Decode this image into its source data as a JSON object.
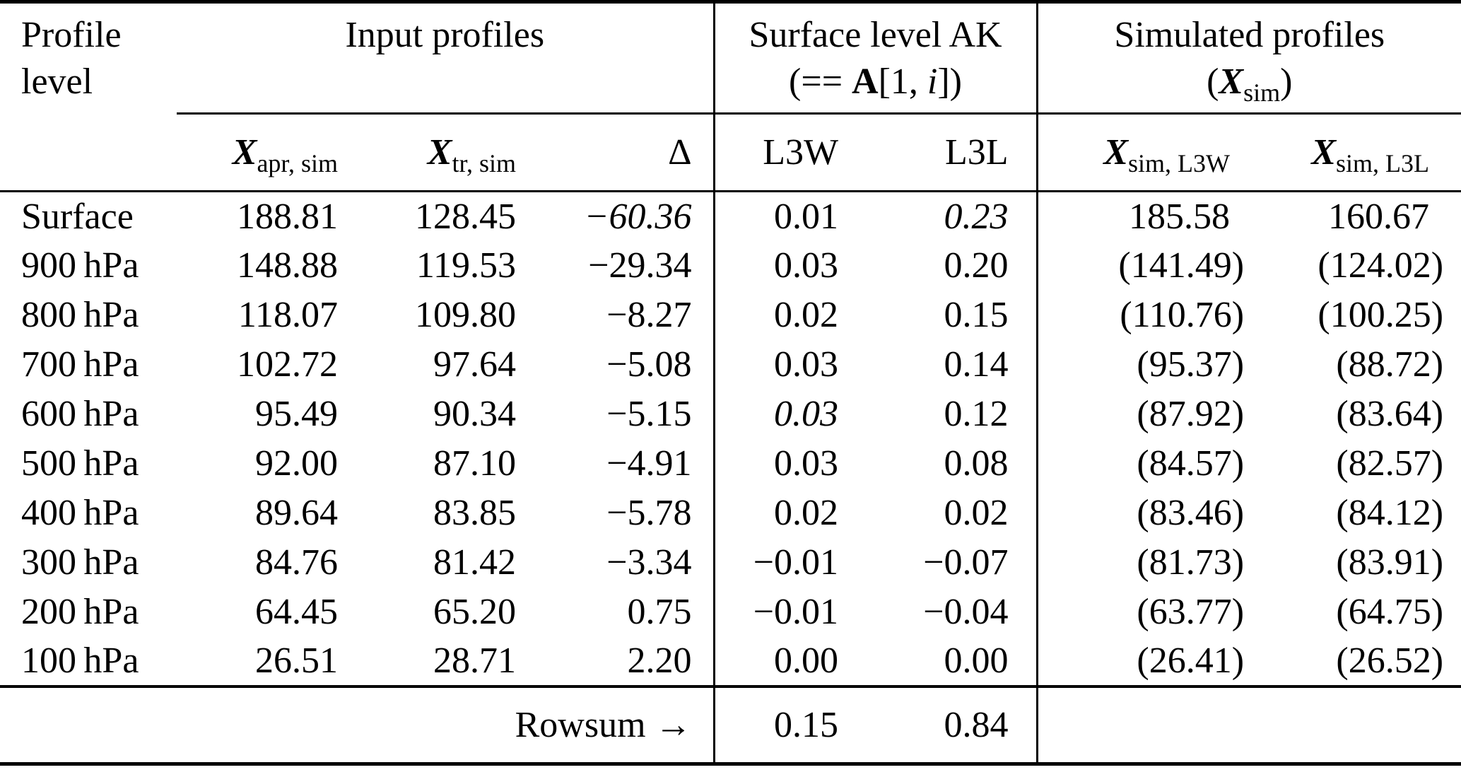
{
  "header": {
    "profile_line1": "Profile",
    "profile_line2": "level",
    "input_profiles": "Input profiles",
    "surface_ak_line1": "Surface level AK",
    "surface_ak_open": "(== ",
    "surface_ak_A": "A",
    "surface_ak_mid": "[1, ",
    "surface_ak_i": "i",
    "surface_ak_close": "])",
    "simulated_line1": "Simulated profiles",
    "sim_open": "(",
    "sim_X": "X",
    "sim_sub": "sim",
    "sim_close": ")"
  },
  "columns": {
    "x_apr": {
      "main": "X",
      "sub": "apr, sim"
    },
    "x_tr": {
      "main": "X",
      "sub": "tr, sim"
    },
    "delta": "Δ",
    "l3w": "L3W",
    "l3l": "L3L",
    "x_sim_l3w": {
      "main": "X",
      "sub": "sim, L3W"
    },
    "x_sim_l3l": {
      "main": "X",
      "sub": "sim, L3L"
    }
  },
  "rows": [
    {
      "level": "Surface",
      "x_apr": "188.81",
      "x_tr": "128.45",
      "delta": "−60.36",
      "l3w": "0.01",
      "l3l": "0.23",
      "sim_l3w": "185.58",
      "sim_l3l": "160.67",
      "italic": [
        "delta",
        "l3l"
      ]
    },
    {
      "level": "900 hPa",
      "x_apr": "148.88",
      "x_tr": "119.53",
      "delta": "−29.34",
      "l3w": "0.03",
      "l3l": "0.20",
      "sim_l3w": "(141.49)",
      "sim_l3l": "(124.02)",
      "italic": []
    },
    {
      "level": "800 hPa",
      "x_apr": "118.07",
      "x_tr": "109.80",
      "delta": "−8.27",
      "l3w": "0.02",
      "l3l": "0.15",
      "sim_l3w": "(110.76)",
      "sim_l3l": "(100.25)",
      "italic": []
    },
    {
      "level": "700 hPa",
      "x_apr": "102.72",
      "x_tr": "97.64",
      "delta": "−5.08",
      "l3w": "0.03",
      "l3l": "0.14",
      "sim_l3w": "(95.37)",
      "sim_l3l": "(88.72)",
      "italic": []
    },
    {
      "level": "600 hPa",
      "x_apr": "95.49",
      "x_tr": "90.34",
      "delta": "−5.15",
      "l3w": "0.03",
      "l3l": "0.12",
      "sim_l3w": "(87.92)",
      "sim_l3l": "(83.64)",
      "italic": [
        "l3w"
      ]
    },
    {
      "level": "500 hPa",
      "x_apr": "92.00",
      "x_tr": "87.10",
      "delta": "−4.91",
      "l3w": "0.03",
      "l3l": "0.08",
      "sim_l3w": "(84.57)",
      "sim_l3l": "(82.57)",
      "italic": []
    },
    {
      "level": "400 hPa",
      "x_apr": "89.64",
      "x_tr": "83.85",
      "delta": "−5.78",
      "l3w": "0.02",
      "l3l": "0.02",
      "sim_l3w": "(83.46)",
      "sim_l3l": "(84.12)",
      "italic": []
    },
    {
      "level": "300 hPa",
      "x_apr": "84.76",
      "x_tr": "81.42",
      "delta": "−3.34",
      "l3w": "−0.01",
      "l3l": "−0.07",
      "sim_l3w": "(81.73)",
      "sim_l3l": "(83.91)",
      "italic": []
    },
    {
      "level": "200 hPa",
      "x_apr": "64.45",
      "x_tr": "65.20",
      "delta": "0.75",
      "l3w": "−0.01",
      "l3l": "−0.04",
      "sim_l3w": "(63.77)",
      "sim_l3l": "(64.75)",
      "italic": []
    },
    {
      "level": "100 hPa",
      "x_apr": "26.51",
      "x_tr": "28.71",
      "delta": "2.20",
      "l3w": "0.00",
      "l3l": "0.00",
      "sim_l3w": "(26.41)",
      "sim_l3l": "(26.52)",
      "italic": []
    }
  ],
  "footer": {
    "label": "Rowsum →",
    "l3w": "0.15",
    "l3l": "0.84"
  }
}
